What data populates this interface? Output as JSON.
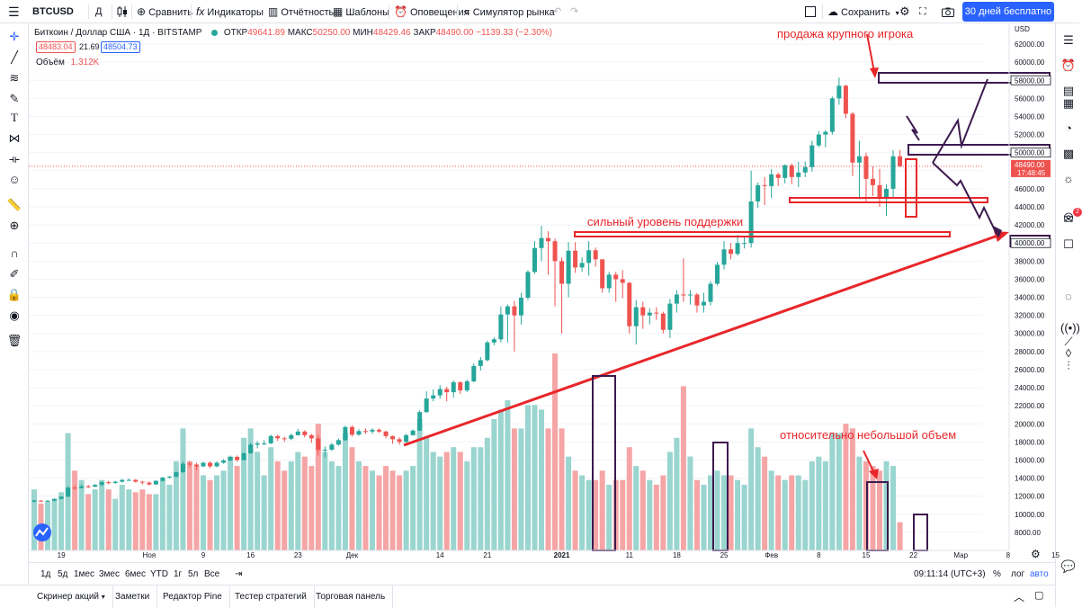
{
  "toolbar": {
    "menu_icon": "menu-icon",
    "symbol": "BTCUSD",
    "interval": "Д",
    "compare": "Сравнить",
    "indicators": "Индикаторы",
    "financials": "Отчётность",
    "templates": "Шаблоны",
    "alerts": "Оповещения",
    "replay": "Симулятор рынка",
    "save": "Сохранить",
    "trial": "30 дней бесплатно"
  },
  "legend": {
    "title": "Биткоин / Доллар США · 1Д · BITSTAMP",
    "open_label": "ОТКР",
    "open": "49641.89",
    "high_label": "МАКС",
    "high": "50250.00",
    "low_label": "МИН",
    "low": "48429.46",
    "close_label": "ЗАКР",
    "close": "48490.00",
    "change": "−1139.33 (−2.30%)",
    "bid": "48483.04",
    "spread": "21.69",
    "ask": "48504.73",
    "volume_label": "Объём",
    "volume": "1.312K"
  },
  "price_axis": {
    "currency": "USD",
    "labels": [
      "62000.00",
      "60000.00",
      "58000.00",
      "56000.00",
      "54000.00",
      "52000.00",
      "50000.00",
      "48000.00",
      "46000.00",
      "44000.00",
      "42000.00",
      "40000.00",
      "38000.00",
      "36000.00",
      "34000.00",
      "32000.00",
      "30000.00",
      "28000.00",
      "26000.00",
      "24000.00",
      "22000.00",
      "20000.00",
      "18000.00",
      "16000.00",
      "14000.00",
      "12000.00",
      "10000.00",
      "8000.00"
    ],
    "highlighted": [
      "58000.00",
      "50000.00",
      "40000.00"
    ],
    "current_price": "48490.00",
    "countdown": "17:48:45"
  },
  "time_axis": {
    "labels": [
      "19",
      "Ноя",
      "9",
      "16",
      "23",
      "Дек",
      "14",
      "21",
      "2021",
      "11",
      "18",
      "25",
      "Фев",
      "8",
      "15",
      "22",
      "Мар",
      "8",
      "15"
    ]
  },
  "annotations": {
    "big_player": "продажа крупного игрока",
    "support": "сильный уровень поддержки",
    "volume_note": "относительно небольшой объем"
  },
  "timeframes": [
    "1д",
    "5д",
    "1мес",
    "3мес",
    "6мес",
    "YTD",
    "1г",
    "5л",
    "Все"
  ],
  "clock": "09:11:14 (UTC+3)",
  "scale_buttons": {
    "percent": "%",
    "log": "лог",
    "auto": "авто"
  },
  "panel_tabs": [
    "Скринер акций",
    "Заметки",
    "Редактор Pine",
    "Тестер стратегий",
    "Торговая панель"
  ],
  "alerts_badge": "2",
  "colors": {
    "up": "#26a69a",
    "down": "#ef5350",
    "accent": "#2962ff",
    "annotation": "#e8262a",
    "box": "#3d1a4f"
  },
  "chart_data": {
    "type": "candlestick",
    "title": "Биткоин / Доллар США · 1Д · BITSTAMP",
    "ylim": [
      6000,
      63500
    ],
    "volume_ylim": [
      0,
      23000
    ],
    "x_start": "2020-10-15",
    "candles": [
      [
        11400,
        11550,
        11300,
        11500,
        6500
      ],
      [
        11500,
        11450,
        11350,
        11550,
        5000
      ],
      [
        11450,
        11500,
        11350,
        11550,
        5200
      ],
      [
        11500,
        11700,
        11400,
        11750,
        5500
      ],
      [
        11700,
        11950,
        11650,
        12000,
        6200
      ],
      [
        11950,
        12950,
        11900,
        13100,
        12500
      ],
      [
        12950,
        12900,
        12700,
        13200,
        8500
      ],
      [
        12900,
        13100,
        12850,
        13300,
        7500
      ],
      [
        13100,
        13050,
        12900,
        13250,
        6000
      ],
      [
        13050,
        13250,
        13000,
        13350,
        6500
      ],
      [
        13250,
        13550,
        13100,
        13650,
        7500
      ],
      [
        13550,
        13450,
        13300,
        13700,
        6500
      ],
      [
        13450,
        13600,
        13400,
        13700,
        5500
      ],
      [
        13600,
        13800,
        13500,
        13900,
        7000
      ],
      [
        13800,
        13800,
        13700,
        13950,
        6500
      ],
      [
        13800,
        13600,
        13500,
        13900,
        6200
      ],
      [
        13600,
        13500,
        13300,
        13700,
        6500
      ],
      [
        13500,
        13300,
        13200,
        13650,
        6000
      ],
      [
        13300,
        13700,
        13250,
        13750,
        6000
      ],
      [
        13700,
        14050,
        13600,
        14150,
        7500
      ],
      [
        14050,
        14150,
        13950,
        14250,
        7000
      ],
      [
        14150,
        14650,
        14100,
        14750,
        9500
      ],
      [
        14650,
        15600,
        14600,
        15800,
        13000
      ],
      [
        15600,
        15500,
        15200,
        15900,
        9500
      ],
      [
        15500,
        15300,
        14900,
        15700,
        9000
      ],
      [
        15300,
        15700,
        15200,
        15800,
        8000
      ],
      [
        15700,
        15300,
        15100,
        15850,
        7500
      ],
      [
        15300,
        15700,
        15200,
        15850,
        8000
      ],
      [
        15700,
        15950,
        15600,
        16100,
        8500
      ],
      [
        15950,
        16350,
        15900,
        16500,
        10000
      ],
      [
        16350,
        16000,
        15800,
        16500,
        9000
      ],
      [
        16000,
        16750,
        15950,
        16850,
        12000
      ],
      [
        16750,
        17700,
        16700,
        17900,
        13000
      ],
      [
        17700,
        17850,
        17300,
        18100,
        10500
      ],
      [
        17850,
        17850,
        17650,
        18200,
        8000
      ],
      [
        17850,
        18650,
        17750,
        18800,
        11000
      ],
      [
        18650,
        18400,
        18100,
        18800,
        9500
      ],
      [
        18400,
        18350,
        18000,
        18600,
        8500
      ],
      [
        18350,
        18750,
        18200,
        18950,
        9500
      ],
      [
        18750,
        19150,
        18700,
        19450,
        10500
      ],
      [
        19150,
        18750,
        18500,
        19300,
        10000
      ],
      [
        18750,
        18400,
        17900,
        18900,
        9000
      ],
      [
        18400,
        17100,
        16500,
        18800,
        13500
      ],
      [
        17100,
        17150,
        16300,
        17500,
        10500
      ],
      [
        17150,
        17700,
        17000,
        17900,
        9500
      ],
      [
        17700,
        18200,
        17600,
        18400,
        9000
      ],
      [
        18200,
        19650,
        18100,
        19800,
        12500
      ],
      [
        19650,
        18800,
        18600,
        19850,
        11000
      ],
      [
        18800,
        19200,
        18700,
        19400,
        9500
      ],
      [
        19200,
        19150,
        18900,
        19500,
        9000
      ],
      [
        19150,
        19350,
        18900,
        19500,
        8500
      ],
      [
        19350,
        19150,
        19000,
        19500,
        8000
      ],
      [
        19150,
        18650,
        18400,
        19250,
        9000
      ],
      [
        18650,
        18300,
        17800,
        18700,
        8500
      ],
      [
        18300,
        18000,
        17700,
        18500,
        8000
      ],
      [
        18000,
        18750,
        17900,
        18900,
        8500
      ],
      [
        18750,
        19250,
        18700,
        19400,
        9000
      ],
      [
        19250,
        21300,
        19200,
        21500,
        14000
      ],
      [
        21300,
        22800,
        21200,
        23600,
        12000
      ],
      [
        22800,
        23150,
        22500,
        23800,
        10500
      ],
      [
        23150,
        23850,
        22800,
        24300,
        10000
      ],
      [
        23850,
        23500,
        22500,
        24100,
        10500
      ],
      [
        23500,
        24600,
        22900,
        24800,
        11000
      ],
      [
        24600,
        23700,
        23300,
        24700,
        10500
      ],
      [
        23700,
        24700,
        23500,
        24900,
        9500
      ],
      [
        24700,
        26400,
        24600,
        26700,
        11000
      ],
      [
        26400,
        27050,
        25900,
        27400,
        11000
      ],
      [
        27050,
        29000,
        26900,
        29200,
        12000
      ],
      [
        29000,
        29350,
        28700,
        29600,
        14000
      ],
      [
        29350,
        32100,
        29000,
        33000,
        15000
      ],
      [
        32100,
        33000,
        29000,
        33200,
        16000
      ],
      [
        33000,
        32000,
        28000,
        33600,
        13000
      ],
      [
        32000,
        33950,
        31000,
        34500,
        13000
      ],
      [
        33950,
        36800,
        33700,
        37000,
        15500
      ],
      [
        36800,
        39450,
        36600,
        40200,
        15500
      ],
      [
        39450,
        40550,
        38000,
        41900,
        15000
      ],
      [
        40550,
        40200,
        36500,
        41300,
        13000
      ],
      [
        40200,
        38000,
        33000,
        40500,
        21000
      ],
      [
        38000,
        35500,
        30000,
        38400,
        13000
      ],
      [
        35500,
        39150,
        34000,
        40100,
        10000
      ],
      [
        39150,
        37300,
        36700,
        40100,
        8500
      ],
      [
        37300,
        37800,
        36800,
        38400,
        8000
      ],
      [
        37800,
        39200,
        36400,
        40200,
        7500
      ],
      [
        39200,
        38200,
        37400,
        39500,
        7500
      ],
      [
        38200,
        35000,
        34500,
        38200,
        8500
      ],
      [
        35000,
        36500,
        34500,
        36800,
        7000
      ],
      [
        36500,
        36000,
        33500,
        36800,
        7500
      ],
      [
        36000,
        35600,
        33900,
        37000,
        7500
      ],
      [
        35600,
        30800,
        30000,
        35700,
        11000
      ],
      [
        30800,
        32900,
        28800,
        33700,
        9000
      ],
      [
        32900,
        32000,
        30500,
        33500,
        8500
      ],
      [
        32000,
        32300,
        31000,
        32800,
        7500
      ],
      [
        32300,
        32200,
        31500,
        32900,
        7000
      ],
      [
        32200,
        30400,
        30000,
        32400,
        8000
      ],
      [
        30400,
        33300,
        29500,
        33800,
        10500
      ],
      [
        33300,
        34300,
        32300,
        34800,
        12000
      ],
      [
        34300,
        34250,
        33500,
        38300,
        17500
      ],
      [
        34250,
        34300,
        33200,
        34800,
        10000
      ],
      [
        34300,
        33100,
        32300,
        34500,
        7500
      ],
      [
        33100,
        33500,
        32300,
        34500,
        7000
      ],
      [
        33500,
        35500,
        33100,
        35800,
        8000
      ],
      [
        35500,
        37600,
        35300,
        37900,
        8500
      ],
      [
        37600,
        39300,
        37100,
        40200,
        8000
      ],
      [
        39300,
        38800,
        38200,
        40000,
        8000
      ],
      [
        38800,
        40000,
        38600,
        40900,
        7500
      ],
      [
        40000,
        40000,
        39400,
        40800,
        7000
      ],
      [
        40000,
        44600,
        39500,
        48000,
        13000
      ],
      [
        44600,
        46400,
        43900,
        46700,
        11000
      ],
      [
        46400,
        46300,
        44200,
        47300,
        10000
      ],
      [
        46300,
        47600,
        45000,
        48200,
        8500
      ],
      [
        47600,
        47200,
        46300,
        47800,
        8000
      ],
      [
        47200,
        48600,
        46600,
        48700,
        7500
      ],
      [
        48600,
        47300,
        46500,
        48800,
        8000
      ],
      [
        47300,
        47800,
        46200,
        49000,
        8000
      ],
      [
        47800,
        48400,
        47300,
        49000,
        7500
      ],
      [
        48400,
        50800,
        47900,
        51300,
        9500
      ],
      [
        50800,
        52000,
        50600,
        52400,
        10000
      ],
      [
        52000,
        52300,
        50600,
        52500,
        9500
      ],
      [
        52300,
        56000,
        52000,
        56200,
        12500
      ],
      [
        56000,
        57400,
        55300,
        58300,
        12500
      ],
      [
        57400,
        54300,
        53800,
        57500,
        13500
      ],
      [
        54300,
        48900,
        47400,
        54500,
        13000
      ],
      [
        48900,
        49600,
        45000,
        51300,
        10000
      ],
      [
        49600,
        47100,
        44500,
        50000,
        9500
      ],
      [
        47100,
        46400,
        45200,
        48500,
        9000
      ],
      [
        46400,
        44900,
        44000,
        48200,
        8500
      ],
      [
        44900,
        46000,
        43000,
        46500,
        9500
      ],
      [
        46000,
        49600,
        45000,
        50300,
        9000
      ],
      [
        49600,
        48500,
        48400,
        50300,
        3000
      ]
    ]
  }
}
